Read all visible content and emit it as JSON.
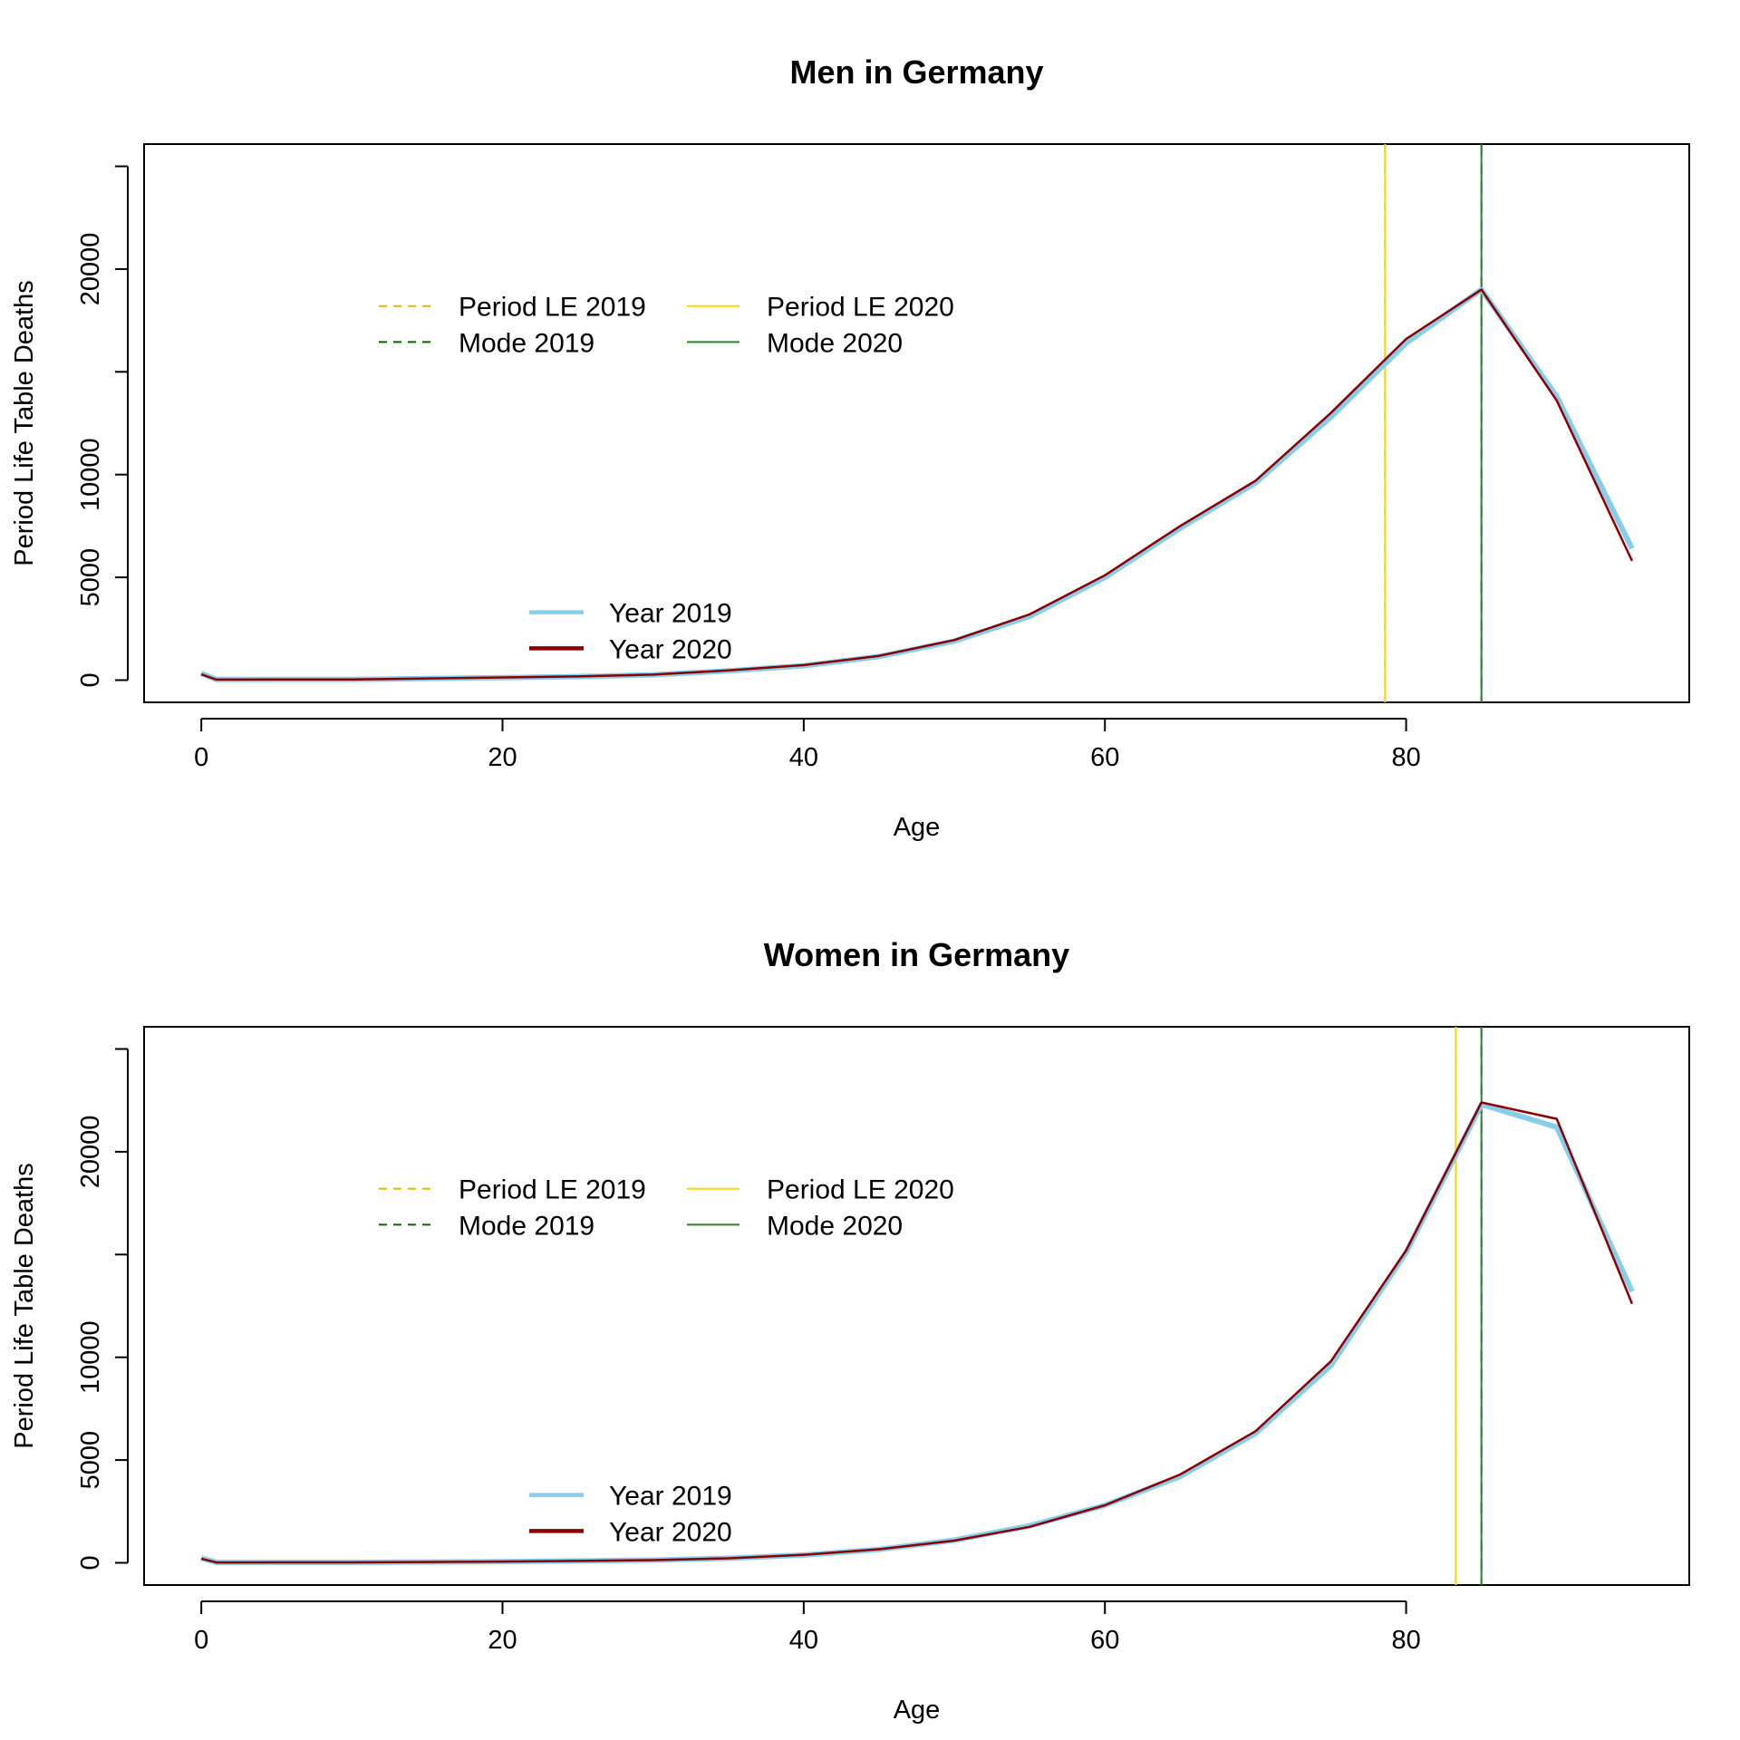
{
  "chart_data": [
    {
      "type": "line",
      "title": "Men in Germany",
      "xlabel": "Age",
      "ylabel": "Period Life Table Deaths",
      "xlim": [
        -3.8,
        98.8
      ],
      "ylim": [
        -1081,
        26081
      ],
      "x_ticks": [
        0,
        20,
        40,
        60,
        80
      ],
      "y_ticks": [
        0,
        5000,
        10000,
        15000,
        20000,
        25000
      ],
      "y_tick_labels": [
        "0",
        "5000",
        "10000",
        "",
        "20000",
        ""
      ],
      "x": [
        0,
        1,
        5,
        10,
        15,
        20,
        25,
        30,
        35,
        40,
        45,
        50,
        55,
        60,
        65,
        70,
        75,
        80,
        85,
        90,
        95
      ],
      "series": [
        {
          "name": "Year 2019",
          "color": "#87ceeb",
          "values": [
            330,
            30,
            30,
            30,
            80,
            120,
            170,
            260,
            450,
            700,
            1150,
            1900,
            3100,
            5000,
            7400,
            9600,
            12800,
            16400,
            19000,
            13800,
            6400
          ]
        },
        {
          "name": "Year 2020",
          "color": "#8b0000",
          "values": [
            280,
            25,
            28,
            30,
            85,
            130,
            180,
            270,
            470,
            730,
            1180,
            1950,
            3200,
            5100,
            7500,
            9700,
            13000,
            16600,
            19000,
            13600,
            5800
          ]
        }
      ],
      "vlines": [
        {
          "name": "Period LE 2019",
          "x": 78.6,
          "color": "#e6b800",
          "dash": "dashed"
        },
        {
          "name": "Period LE 2020",
          "x": 78.6,
          "color": "#ffd700",
          "dash": "solid"
        },
        {
          "name": "Mode 2019",
          "x": 85.0,
          "color": "#006400",
          "dash": "dashed"
        },
        {
          "name": "Mode 2020",
          "x": 85.0,
          "color": "#228b22",
          "dash": "solid"
        }
      ]
    },
    {
      "type": "line",
      "title": "Women in Germany",
      "xlabel": "Age",
      "ylabel": "Period Life Table Deaths",
      "xlim": [
        -3.8,
        98.8
      ],
      "ylim": [
        -1081,
        26081
      ],
      "x_ticks": [
        0,
        20,
        40,
        60,
        80
      ],
      "y_ticks": [
        0,
        5000,
        10000,
        15000,
        20000,
        25000
      ],
      "y_tick_labels": [
        "0",
        "5000",
        "10000",
        "",
        "20000",
        ""
      ],
      "x": [
        0,
        1,
        5,
        10,
        15,
        20,
        25,
        30,
        35,
        40,
        45,
        50,
        55,
        60,
        65,
        70,
        75,
        80,
        85,
        90,
        95
      ],
      "series": [
        {
          "name": "Year 2019",
          "color": "#87ceeb",
          "values": [
            230,
            20,
            20,
            20,
            40,
            60,
            90,
            130,
            220,
            380,
            650,
            1100,
            1800,
            2800,
            4200,
            6300,
            9600,
            15100,
            22300,
            21200,
            13200
          ]
        },
        {
          "name": "Year 2020",
          "color": "#8b0000",
          "values": [
            200,
            18,
            20,
            20,
            40,
            60,
            90,
            130,
            220,
            390,
            660,
            1080,
            1750,
            2800,
            4300,
            6400,
            9800,
            15200,
            22400,
            21600,
            12600
          ]
        }
      ],
      "vlines": [
        {
          "name": "Period LE 2019",
          "x": 83.3,
          "color": "#e6b800",
          "dash": "dashed"
        },
        {
          "name": "Period LE 2020",
          "x": 83.3,
          "color": "#ffd700",
          "dash": "solid"
        },
        {
          "name": "Mode 2019",
          "x": 85.0,
          "color": "#006400",
          "dash": "dashed"
        },
        {
          "name": "Mode 2020",
          "x": 85.0,
          "color": "#228b22",
          "dash": "solid"
        }
      ]
    }
  ],
  "legend_lines": {
    "items": [
      {
        "label": "Period LE 2019",
        "color": "#e6b800",
        "dash": "dashed"
      },
      {
        "label": "Period LE 2020",
        "color": "#ffd700",
        "dash": "solid"
      },
      {
        "label": "Mode 2019",
        "color": "#006400",
        "dash": "dashed"
      },
      {
        "label": "Mode 2020",
        "color": "#228b22",
        "dash": "solid"
      }
    ],
    "placement": "upper-left"
  },
  "legend_years": {
    "items": [
      {
        "label": "Year 2019",
        "color": "#87ceeb"
      },
      {
        "label": "Year 2020",
        "color": "#8b0000"
      }
    ],
    "placement": "lower-left"
  }
}
